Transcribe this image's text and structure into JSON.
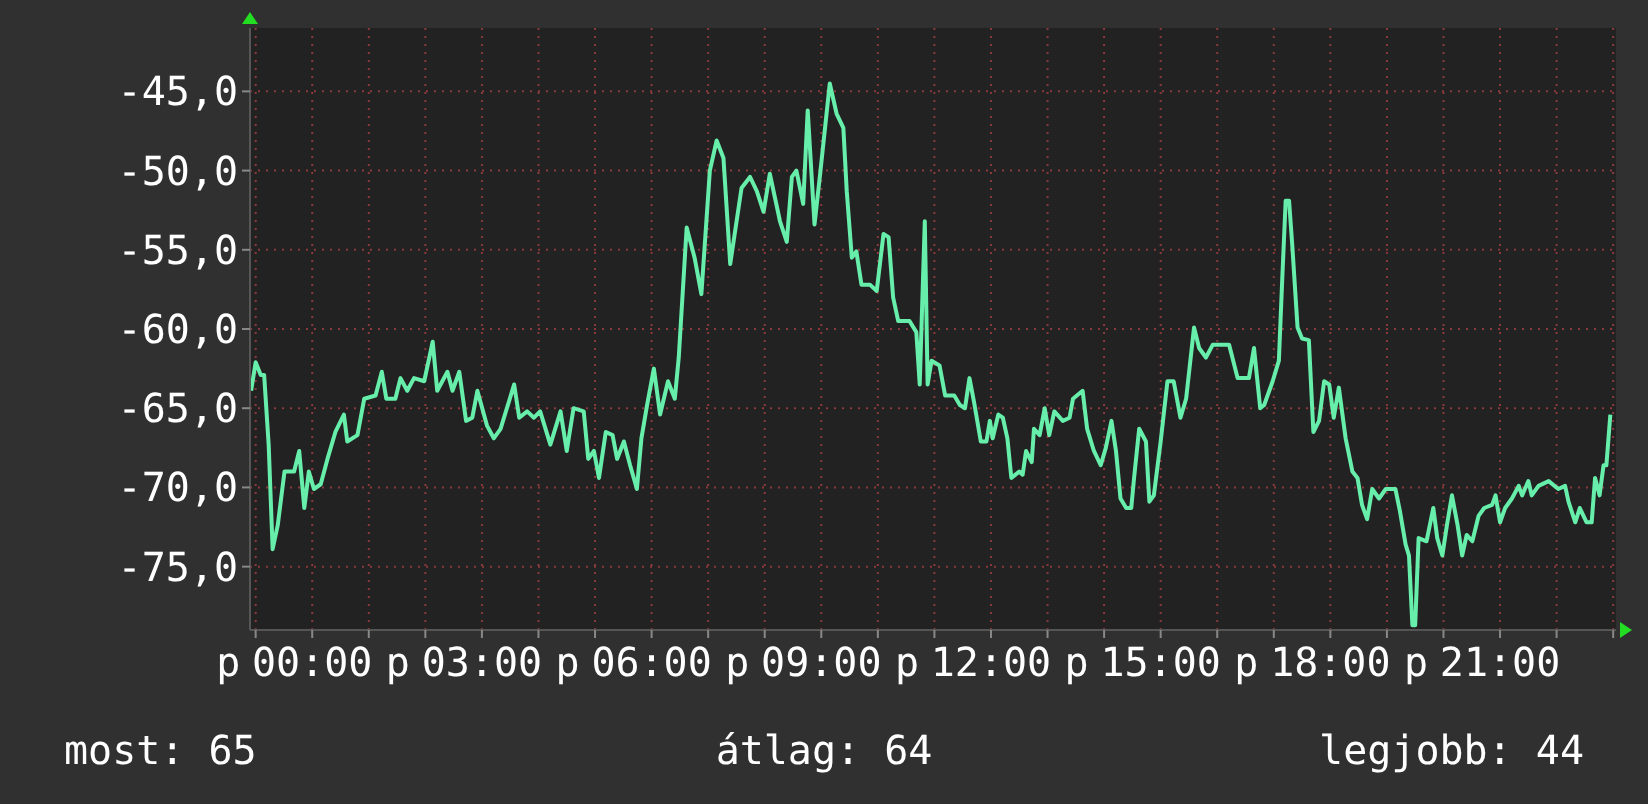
{
  "chart_data": {
    "type": "line",
    "xlim": [
      -1.1,
      23.05
    ],
    "ylim": [
      -79,
      -41
    ],
    "xticks": [
      {
        "value": -1,
        "label": null
      },
      {
        "value": 0,
        "label": "00:00"
      },
      {
        "value": 1,
        "label": null
      },
      {
        "value": 2,
        "label": null
      },
      {
        "value": 3,
        "label": "03:00"
      },
      {
        "value": 4,
        "label": null
      },
      {
        "value": 5,
        "label": null
      },
      {
        "value": 6,
        "label": "06:00"
      },
      {
        "value": 7,
        "label": null
      },
      {
        "value": 8,
        "label": null
      },
      {
        "value": 9,
        "label": "09:00"
      },
      {
        "value": 10,
        "label": null
      },
      {
        "value": 11,
        "label": null
      },
      {
        "value": 12,
        "label": "12:00"
      },
      {
        "value": 13,
        "label": null
      },
      {
        "value": 14,
        "label": null
      },
      {
        "value": 15,
        "label": "15:00"
      },
      {
        "value": 16,
        "label": null
      },
      {
        "value": 17,
        "label": null
      },
      {
        "value": 18,
        "label": "18:00"
      },
      {
        "value": 19,
        "label": null
      },
      {
        "value": 20,
        "label": null
      },
      {
        "value": 21,
        "label": "21:00"
      },
      {
        "value": 22,
        "label": null
      },
      {
        "value": 23,
        "label": null
      }
    ],
    "yticks": [
      {
        "value": -75,
        "label": "-75,0"
      },
      {
        "value": -70,
        "label": "-70,0"
      },
      {
        "value": -65,
        "label": "-65,0"
      },
      {
        "value": -60,
        "label": "-60,0"
      },
      {
        "value": -55,
        "label": "-55,0"
      },
      {
        "value": -50,
        "label": "-50,0"
      },
      {
        "value": -45,
        "label": "-45,0"
      }
    ],
    "grid": true,
    "marker": "none",
    "line_style": "solid",
    "annotations": [
      "most: 65",
      "átlag: 64",
      "legjobb: 44",
      "p",
      "p",
      "p",
      "p",
      "p",
      "p",
      "p",
      "p"
    ],
    "series": [
      {
        "color": "#66eeaa",
        "x": [
          -1.08,
          -1.0,
          -0.91,
          -0.85,
          -0.77,
          -0.7,
          -0.61,
          -0.49,
          -0.32,
          -0.23,
          -0.14,
          -0.06,
          0.03,
          0.15,
          0.27,
          0.41,
          0.56,
          0.62,
          0.8,
          0.92,
          1.12,
          1.23,
          1.31,
          1.47,
          1.56,
          1.68,
          1.8,
          1.98,
          2.13,
          2.21,
          2.39,
          2.48,
          2.6,
          2.72,
          2.83,
          2.92,
          3.09,
          3.21,
          3.33,
          3.57,
          3.66,
          3.8,
          3.92,
          4.03,
          4.21,
          4.39,
          4.5,
          4.62,
          4.8,
          4.88,
          4.98,
          5.07,
          5.19,
          5.31,
          5.39,
          5.51,
          5.62,
          5.74,
          5.82,
          5.92,
          6.04,
          6.15,
          6.29,
          6.41,
          6.48,
          6.62,
          6.76,
          6.88,
          7.03,
          7.15,
          7.27,
          7.39,
          7.59,
          7.74,
          7.86,
          7.98,
          8.09,
          8.27,
          8.39,
          8.48,
          8.56,
          8.68,
          8.76,
          8.88,
          8.98,
          9.15,
          9.27,
          9.39,
          9.45,
          9.54,
          9.62,
          9.71,
          9.86,
          9.98,
          10.1,
          10.19,
          10.27,
          10.36,
          10.56,
          10.68,
          10.74,
          10.83,
          10.88,
          10.95,
          11.09,
          11.19,
          11.35,
          11.45,
          11.54,
          11.62,
          11.7,
          11.82,
          11.92,
          11.98,
          12.03,
          12.13,
          12.21,
          12.29,
          12.36,
          12.5,
          12.56,
          12.62,
          12.72,
          12.76,
          12.86,
          12.95,
          13.03,
          13.12,
          13.27,
          13.39,
          13.45,
          13.62,
          13.7,
          13.82,
          13.94,
          14.03,
          14.13,
          14.21,
          14.29,
          14.39,
          14.48,
          14.53,
          14.62,
          14.74,
          14.8,
          14.88,
          15.0,
          15.12,
          15.23,
          15.35,
          15.45,
          15.59,
          15.68,
          15.8,
          15.92,
          16.21,
          16.36,
          16.56,
          16.65,
          16.76,
          16.83,
          16.98,
          17.09,
          17.15,
          17.21,
          17.27,
          17.33,
          17.42,
          17.5,
          17.62,
          17.7,
          17.8,
          17.89,
          17.98,
          18.06,
          18.15,
          18.27,
          18.39,
          18.48,
          18.56,
          18.65,
          18.74,
          18.86,
          18.98,
          19.15,
          19.23,
          19.33,
          19.39,
          19.45,
          19.5,
          19.56,
          19.7,
          19.82,
          19.89,
          19.98,
          20.06,
          20.15,
          20.25,
          20.33,
          20.41,
          20.51,
          20.62,
          20.72,
          20.86,
          20.92,
          21.0,
          21.09,
          21.21,
          21.33,
          21.39,
          21.5,
          21.56,
          21.68,
          21.86,
          22.03,
          22.15,
          22.21,
          22.33,
          22.41,
          22.53,
          22.62,
          22.68,
          22.76,
          22.83,
          22.88,
          22.95
        ],
        "values": [
          -63.9,
          -62.1,
          -62.9,
          -62.9,
          -67.3,
          -73.9,
          -72.4,
          -69.0,
          -69.0,
          -67.7,
          -71.3,
          -69.0,
          -70.1,
          -69.8,
          -68.2,
          -66.5,
          -65.4,
          -67.1,
          -66.7,
          -64.4,
          -64.2,
          -62.7,
          -64.4,
          -64.4,
          -63.1,
          -63.9,
          -63.1,
          -63.3,
          -60.8,
          -63.9,
          -62.7,
          -63.9,
          -62.7,
          -65.8,
          -65.6,
          -63.9,
          -66.1,
          -66.9,
          -66.3,
          -63.5,
          -65.6,
          -65.2,
          -65.6,
          -65.2,
          -67.3,
          -65.2,
          -67.7,
          -65.0,
          -65.2,
          -68.2,
          -67.7,
          -69.4,
          -66.5,
          -66.7,
          -68.2,
          -67.1,
          -68.6,
          -70.1,
          -66.9,
          -64.8,
          -62.5,
          -65.4,
          -63.3,
          -64.4,
          -61.8,
          -53.6,
          -55.5,
          -57.8,
          -50.0,
          -48.1,
          -49.2,
          -55.9,
          -51.1,
          -50.4,
          -51.3,
          -52.6,
          -50.2,
          -53.2,
          -54.5,
          -50.4,
          -50.0,
          -52.1,
          -46.2,
          -53.4,
          -50.2,
          -44.5,
          -46.4,
          -47.3,
          -51.3,
          -55.5,
          -55.1,
          -57.2,
          -57.2,
          -57.6,
          -54.0,
          -54.2,
          -58.0,
          -59.5,
          -59.5,
          -60.2,
          -63.5,
          -53.2,
          -63.5,
          -62.0,
          -62.3,
          -64.2,
          -64.2,
          -64.8,
          -65.0,
          -63.1,
          -64.6,
          -67.1,
          -67.1,
          -65.8,
          -66.9,
          -65.4,
          -65.6,
          -66.9,
          -69.4,
          -69.0,
          -69.2,
          -67.7,
          -68.4,
          -66.3,
          -66.7,
          -65.0,
          -66.7,
          -65.2,
          -65.8,
          -65.6,
          -64.4,
          -63.9,
          -66.3,
          -67.7,
          -68.6,
          -67.5,
          -65.8,
          -67.7,
          -70.7,
          -71.3,
          -71.3,
          -69.4,
          -66.3,
          -67.1,
          -70.9,
          -70.5,
          -67.1,
          -63.3,
          -63.3,
          -65.6,
          -64.4,
          -59.9,
          -61.2,
          -61.8,
          -61.0,
          -61.0,
          -63.1,
          -63.1,
          -61.2,
          -65.0,
          -64.8,
          -63.3,
          -62.0,
          -56.8,
          -51.9,
          -51.9,
          -54.9,
          -59.9,
          -60.6,
          -60.7,
          -66.5,
          -65.8,
          -63.3,
          -63.5,
          -65.6,
          -63.7,
          -66.9,
          -69.0,
          -69.4,
          -71.1,
          -72.0,
          -70.1,
          -70.7,
          -70.1,
          -70.1,
          -71.5,
          -73.6,
          -74.3,
          -78.7,
          -78.7,
          -73.2,
          -73.4,
          -71.3,
          -73.2,
          -74.3,
          -72.4,
          -70.5,
          -72.4,
          -74.3,
          -73.0,
          -73.4,
          -71.8,
          -71.3,
          -71.1,
          -70.5,
          -72.2,
          -71.3,
          -70.7,
          -69.9,
          -70.5,
          -69.6,
          -70.5,
          -69.9,
          -69.6,
          -70.1,
          -69.9,
          -70.9,
          -72.2,
          -71.3,
          -72.2,
          -72.2,
          -69.4,
          -70.5,
          -68.6,
          -68.6,
          -65.4
        ]
      }
    ]
  }
}
